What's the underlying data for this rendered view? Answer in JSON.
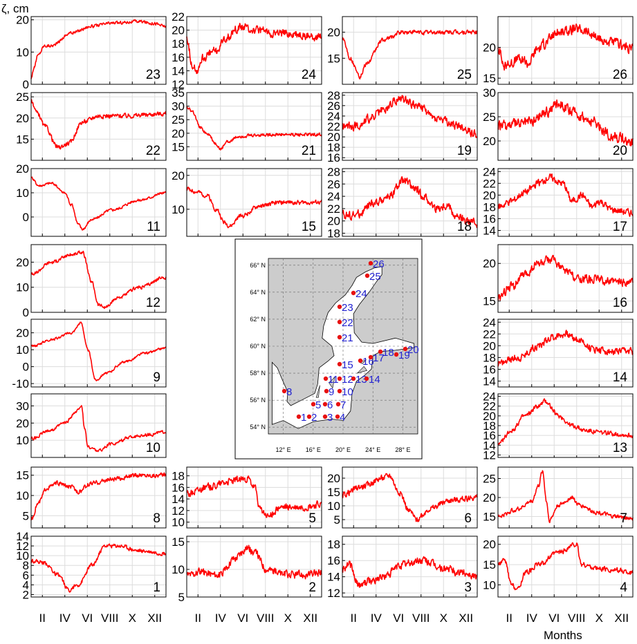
{
  "figure": {
    "y_label": "ζ, cm",
    "x_label": "Months",
    "month_ticks": [
      "II",
      "IV",
      "VI",
      "VIII",
      "X",
      "XII"
    ]
  },
  "colors": {
    "series": "#ff0000",
    "grid": "#dcdcdc",
    "sea": "#cccccc",
    "station": "#e81010",
    "station_label": "#1f1fd0"
  },
  "chart_data": [
    {
      "type": "line",
      "station": "23",
      "ylim": [
        0,
        21
      ],
      "yticks": [
        0,
        10,
        20
      ],
      "knots": [
        [
          0,
          2
        ],
        [
          0.02,
          5
        ],
        [
          0.05,
          9
        ],
        [
          0.1,
          12
        ],
        [
          0.15,
          12
        ],
        [
          0.3,
          16
        ],
        [
          0.45,
          18
        ],
        [
          0.6,
          19
        ],
        [
          0.8,
          19.5
        ],
        [
          0.9,
          19
        ],
        [
          1,
          18
        ]
      ],
      "noise": 0.7
    },
    {
      "type": "line",
      "station": "24",
      "ylim": [
        12,
        22
      ],
      "yticks": [
        12,
        14,
        16,
        18,
        20,
        22
      ],
      "knots": [
        [
          0,
          19
        ],
        [
          0.04,
          15
        ],
        [
          0.07,
          14
        ],
        [
          0.12,
          16
        ],
        [
          0.22,
          17
        ],
        [
          0.3,
          19
        ],
        [
          0.4,
          20.5
        ],
        [
          0.5,
          20
        ],
        [
          0.7,
          19.5
        ],
        [
          1,
          19
        ]
      ],
      "noise": 0.9
    },
    {
      "type": "line",
      "station": "25",
      "ylim": [
        10,
        23
      ],
      "yticks": [
        15,
        20
      ],
      "knots": [
        [
          0,
          19
        ],
        [
          0.06,
          15
        ],
        [
          0.1,
          13
        ],
        [
          0.13,
          11.5
        ],
        [
          0.18,
          14
        ],
        [
          0.3,
          18.5
        ],
        [
          0.45,
          20
        ],
        [
          0.7,
          20
        ],
        [
          1,
          20
        ]
      ],
      "noise": 0.6
    },
    {
      "type": "line",
      "station": "26",
      "ylim": [
        14,
        25
      ],
      "yticks": [
        15,
        20
      ],
      "knots": [
        [
          0,
          20
        ],
        [
          0.05,
          17
        ],
        [
          0.15,
          18
        ],
        [
          0.22,
          17.5
        ],
        [
          0.3,
          20
        ],
        [
          0.45,
          22.5
        ],
        [
          0.6,
          23
        ],
        [
          0.8,
          21
        ],
        [
          1,
          20
        ]
      ],
      "noise": 1.2
    },
    {
      "type": "line",
      "station": "22",
      "ylim": [
        10,
        26
      ],
      "yticks": [
        15,
        20,
        25
      ],
      "knots": [
        [
          0,
          24
        ],
        [
          0.05,
          21
        ],
        [
          0.1,
          18
        ],
        [
          0.2,
          13
        ],
        [
          0.28,
          14
        ],
        [
          0.38,
          19
        ],
        [
          0.5,
          20.5
        ],
        [
          0.7,
          20.5
        ],
        [
          1,
          21
        ]
      ],
      "noise": 0.8
    },
    {
      "type": "line",
      "station": "21",
      "ylim": [
        10,
        35
      ],
      "yticks": [
        15,
        20,
        25,
        30,
        35
      ],
      "knots": [
        [
          0,
          30
        ],
        [
          0.04,
          28
        ],
        [
          0.1,
          22
        ],
        [
          0.15,
          20
        ],
        [
          0.22,
          16
        ],
        [
          0.25,
          14
        ],
        [
          0.3,
          17
        ],
        [
          0.4,
          19
        ],
        [
          0.6,
          19.5
        ],
        [
          1,
          19.5
        ]
      ],
      "noise": 0.9
    },
    {
      "type": "line",
      "station": "19",
      "ylim": [
        15.5,
        28.5
      ],
      "yticks": [
        16,
        18,
        20,
        22,
        24,
        26,
        28
      ],
      "knots": [
        [
          0,
          22
        ],
        [
          0.1,
          22
        ],
        [
          0.2,
          23.5
        ],
        [
          0.3,
          25
        ],
        [
          0.4,
          27
        ],
        [
          0.45,
          27.5
        ],
        [
          0.55,
          26
        ],
        [
          0.7,
          23.5
        ],
        [
          0.85,
          22
        ],
        [
          1,
          20.5
        ]
      ],
      "noise": 1.2
    },
    {
      "type": "line",
      "station": "20",
      "ylim": [
        16,
        30
      ],
      "yticks": [
        20,
        25,
        30
      ],
      "knots": [
        [
          0,
          23
        ],
        [
          0.15,
          23.5
        ],
        [
          0.25,
          24
        ],
        [
          0.35,
          26
        ],
        [
          0.45,
          28
        ],
        [
          0.55,
          26
        ],
        [
          0.7,
          24
        ],
        [
          0.85,
          21
        ],
        [
          1,
          20
        ]
      ],
      "noise": 1.6
    },
    {
      "type": "line",
      "station": "11",
      "ylim": [
        -8,
        20
      ],
      "yticks": [
        0,
        10,
        20
      ],
      "knots": [
        [
          0,
          16
        ],
        [
          0.06,
          13
        ],
        [
          0.15,
          14
        ],
        [
          0.25,
          10
        ],
        [
          0.3,
          5
        ],
        [
          0.35,
          -3
        ],
        [
          0.38,
          -5
        ],
        [
          0.45,
          -1
        ],
        [
          0.6,
          3
        ],
        [
          0.8,
          7
        ],
        [
          1,
          10
        ]
      ],
      "noise": 0.8
    },
    {
      "type": "line",
      "station": "15",
      "ylim": [
        2,
        22
      ],
      "yticks": [
        10,
        20
      ],
      "knots": [
        [
          0,
          16
        ],
        [
          0.08,
          15
        ],
        [
          0.15,
          14
        ],
        [
          0.22,
          10
        ],
        [
          0.28,
          6
        ],
        [
          0.32,
          5
        ],
        [
          0.4,
          8
        ],
        [
          0.55,
          11
        ],
        [
          0.7,
          12
        ],
        [
          0.85,
          12
        ],
        [
          1,
          12
        ]
      ],
      "noise": 0.9
    },
    {
      "type": "line",
      "station": "18",
      "ylim": [
        17.5,
        28.5
      ],
      "yticks": [
        18,
        20,
        22,
        24,
        26,
        28
      ],
      "knots": [
        [
          0,
          21
        ],
        [
          0.1,
          21
        ],
        [
          0.25,
          23
        ],
        [
          0.35,
          24
        ],
        [
          0.45,
          26.5
        ],
        [
          0.55,
          25
        ],
        [
          0.6,
          24
        ],
        [
          0.7,
          22
        ],
        [
          0.78,
          22.5
        ],
        [
          0.85,
          20.5
        ],
        [
          0.92,
          20
        ],
        [
          1,
          19.5
        ]
      ],
      "noise": 1.0
    },
    {
      "type": "line",
      "station": "17",
      "ylim": [
        13,
        24.5
      ],
      "yticks": [
        14,
        16,
        18,
        20,
        22,
        24
      ],
      "knots": [
        [
          0,
          18
        ],
        [
          0.1,
          19
        ],
        [
          0.2,
          20.5
        ],
        [
          0.3,
          22
        ],
        [
          0.38,
          23
        ],
        [
          0.48,
          22
        ],
        [
          0.55,
          19
        ],
        [
          0.62,
          20
        ],
        [
          0.7,
          18
        ],
        [
          0.75,
          19
        ],
        [
          0.85,
          17.5
        ],
        [
          1,
          17
        ]
      ],
      "noise": 0.9
    },
    {
      "type": "line",
      "station": "12",
      "ylim": [
        0,
        27
      ],
      "yticks": [
        0,
        10,
        20
      ],
      "knots": [
        [
          0,
          15
        ],
        [
          0.15,
          20
        ],
        [
          0.3,
          23
        ],
        [
          0.38,
          24
        ],
        [
          0.45,
          12
        ],
        [
          0.5,
          3
        ],
        [
          0.55,
          2
        ],
        [
          0.65,
          6
        ],
        [
          0.8,
          10
        ],
        [
          1,
          14
        ]
      ],
      "noise": 1.0
    },
    {
      "type": "line",
      "station": "16",
      "ylim": [
        13.5,
        22.5
      ],
      "yticks": [
        15,
        20
      ],
      "knots": [
        [
          0,
          15.5
        ],
        [
          0.1,
          17
        ],
        [
          0.2,
          18.5
        ],
        [
          0.3,
          20
        ],
        [
          0.4,
          20.5
        ],
        [
          0.5,
          19
        ],
        [
          0.6,
          18
        ],
        [
          0.7,
          18
        ],
        [
          0.85,
          17.5
        ],
        [
          1,
          17.5
        ]
      ],
      "noise": 0.8
    },
    {
      "type": "line",
      "station": "9",
      "ylim": [
        -12,
        28
      ],
      "yticks": [
        -10,
        0,
        10,
        20
      ],
      "knots": [
        [
          0,
          12
        ],
        [
          0.15,
          16
        ],
        [
          0.3,
          20
        ],
        [
          0.37,
          26
        ],
        [
          0.42,
          10
        ],
        [
          0.48,
          -8
        ],
        [
          0.55,
          -4
        ],
        [
          0.7,
          3
        ],
        [
          0.85,
          8
        ],
        [
          1,
          11
        ]
      ],
      "noise": 1.0
    },
    {
      "type": "line",
      "station": "14",
      "ylim": [
        13,
        24.5
      ],
      "yticks": [
        14,
        16,
        18,
        20,
        22,
        24
      ],
      "knots": [
        [
          0,
          17
        ],
        [
          0.15,
          18
        ],
        [
          0.3,
          20
        ],
        [
          0.4,
          21.5
        ],
        [
          0.5,
          22
        ],
        [
          0.6,
          21
        ],
        [
          0.7,
          19.5
        ],
        [
          0.85,
          19
        ],
        [
          1,
          19
        ]
      ],
      "noise": 0.9
    },
    {
      "type": "line",
      "station": "10",
      "ylim": [
        0,
        37
      ],
      "yticks": [
        10,
        20,
        30
      ],
      "knots": [
        [
          0,
          11
        ],
        [
          0.15,
          16
        ],
        [
          0.25,
          20
        ],
        [
          0.33,
          26
        ],
        [
          0.37,
          30
        ],
        [
          0.4,
          16
        ],
        [
          0.42,
          6
        ],
        [
          0.5,
          4
        ],
        [
          0.6,
          8
        ],
        [
          0.75,
          12
        ],
        [
          0.85,
          13
        ],
        [
          1,
          15
        ]
      ],
      "noise": 1.3
    },
    {
      "type": "line",
      "station": "13",
      "ylim": [
        11.5,
        24.5
      ],
      "yticks": [
        12,
        14,
        16,
        18,
        20,
        22,
        24
      ],
      "knots": [
        [
          0,
          14
        ],
        [
          0.1,
          17
        ],
        [
          0.2,
          20
        ],
        [
          0.3,
          22
        ],
        [
          0.35,
          23
        ],
        [
          0.45,
          20
        ],
        [
          0.55,
          18
        ],
        [
          0.65,
          17
        ],
        [
          0.8,
          16.5
        ],
        [
          1,
          16
        ]
      ],
      "noise": 0.7
    },
    {
      "type": "line",
      "station": "8",
      "ylim": [
        2,
        17
      ],
      "yticks": [
        5,
        10,
        15
      ],
      "knots": [
        [
          0,
          4
        ],
        [
          0.05,
          8
        ],
        [
          0.12,
          12
        ],
        [
          0.2,
          13
        ],
        [
          0.3,
          12
        ],
        [
          0.35,
          11
        ],
        [
          0.45,
          13
        ],
        [
          0.6,
          14
        ],
        [
          0.8,
          15
        ],
        [
          1,
          15
        ]
      ],
      "noise": 0.8
    },
    {
      "type": "line",
      "station": "5",
      "ylim": [
        9,
        19.5
      ],
      "yticks": [
        10,
        12,
        14,
        16,
        18
      ],
      "knots": [
        [
          0,
          15
        ],
        [
          0.15,
          16
        ],
        [
          0.3,
          17
        ],
        [
          0.45,
          17.5
        ],
        [
          0.5,
          16
        ],
        [
          0.55,
          12
        ],
        [
          0.6,
          11
        ],
        [
          0.7,
          12.5
        ],
        [
          0.85,
          12.5
        ],
        [
          1,
          13
        ]
      ],
      "noise": 0.9
    },
    {
      "type": "line",
      "station": "6",
      "ylim": [
        2,
        24
      ],
      "yticks": [
        5,
        10,
        15,
        20
      ],
      "knots": [
        [
          0,
          14
        ],
        [
          0.15,
          17
        ],
        [
          0.3,
          20
        ],
        [
          0.35,
          21
        ],
        [
          0.42,
          15
        ],
        [
          0.5,
          8
        ],
        [
          0.55,
          5
        ],
        [
          0.65,
          9
        ],
        [
          0.8,
          12
        ],
        [
          1,
          13
        ]
      ],
      "noise": 1.6
    },
    {
      "type": "line",
      "station": "7",
      "ylim": [
        12,
        28
      ],
      "yticks": [
        15,
        20,
        25
      ],
      "knots": [
        [
          0,
          15
        ],
        [
          0.15,
          17
        ],
        [
          0.25,
          19
        ],
        [
          0.3,
          23
        ],
        [
          0.33,
          27
        ],
        [
          0.36,
          19
        ],
        [
          0.38,
          14
        ],
        [
          0.45,
          18
        ],
        [
          0.55,
          20
        ],
        [
          0.6,
          18
        ],
        [
          0.75,
          16
        ],
        [
          0.85,
          15
        ],
        [
          1,
          14.5
        ]
      ],
      "noise": 0.8
    },
    {
      "type": "line",
      "station": "1",
      "ylim": [
        1.5,
        14
      ],
      "yticks": [
        2,
        4,
        6,
        8,
        10,
        12,
        14
      ],
      "knots": [
        [
          0,
          9
        ],
        [
          0.1,
          8.5
        ],
        [
          0.2,
          6
        ],
        [
          0.28,
          3
        ],
        [
          0.35,
          4
        ],
        [
          0.45,
          8
        ],
        [
          0.55,
          12
        ],
        [
          0.65,
          12
        ],
        [
          0.8,
          11
        ],
        [
          1,
          10.5
        ]
      ],
      "noise": 0.6
    },
    {
      "type": "line",
      "station": "2",
      "ylim": [
        5,
        16
      ],
      "yticks": [
        5,
        10,
        15
      ],
      "knots": [
        [
          0,
          9
        ],
        [
          0.1,
          9.5
        ],
        [
          0.25,
          9
        ],
        [
          0.35,
          12
        ],
        [
          0.45,
          14
        ],
        [
          0.5,
          13
        ],
        [
          0.6,
          10
        ],
        [
          0.75,
          9
        ],
        [
          0.9,
          9
        ],
        [
          1,
          9.5
        ]
      ],
      "noise": 1.0
    },
    {
      "type": "line",
      "station": "3",
      "ylim": [
        11.5,
        19
      ],
      "yticks": [
        12,
        14,
        16,
        18
      ],
      "knots": [
        [
          0,
          15
        ],
        [
          0.05,
          15.5
        ],
        [
          0.12,
          13
        ],
        [
          0.2,
          13.5
        ],
        [
          0.3,
          14
        ],
        [
          0.45,
          15.5
        ],
        [
          0.6,
          16
        ],
        [
          0.75,
          15
        ],
        [
          0.9,
          14.5
        ],
        [
          1,
          14
        ]
      ],
      "noise": 0.7
    },
    {
      "type": "line",
      "station": "4",
      "ylim": [
        7,
        22
      ],
      "yticks": [
        10,
        15,
        20
      ],
      "knots": [
        [
          0,
          15
        ],
        [
          0.05,
          16
        ],
        [
          0.1,
          10
        ],
        [
          0.15,
          9
        ],
        [
          0.2,
          13
        ],
        [
          0.3,
          15
        ],
        [
          0.45,
          18
        ],
        [
          0.58,
          20
        ],
        [
          0.62,
          15
        ],
        [
          0.75,
          14
        ],
        [
          0.9,
          13.5
        ],
        [
          1,
          13
        ]
      ],
      "noise": 0.9
    }
  ],
  "map": {
    "lat_labels": [
      "66° N",
      "64° N",
      "62° N",
      "60° N",
      "58° N",
      "56° N",
      "54° N"
    ],
    "lon_labels": [
      "12° E",
      "16° E",
      "20° E",
      "24° E",
      "28° E"
    ],
    "stations": [
      "1",
      "2",
      "3",
      "4",
      "5",
      "6",
      "7",
      "8",
      "9",
      "10",
      "11",
      "12",
      "13",
      "14",
      "15",
      "16",
      "17",
      "18",
      "19",
      "20",
      "21",
      "22",
      "23",
      "24",
      "25",
      "26"
    ]
  }
}
